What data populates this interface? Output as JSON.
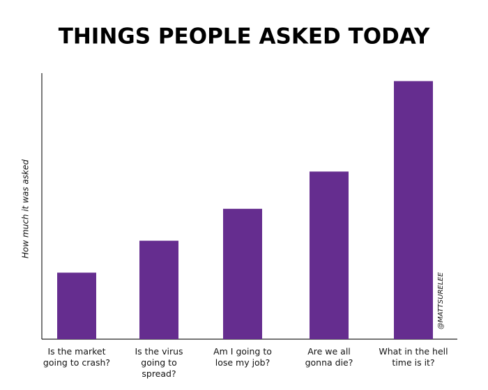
{
  "chart_data": {
    "type": "bar",
    "title": "THINGS PEOPLE ASKED TODAY",
    "y_label": "How much it was asked",
    "annotation": "@MATTSURELEE",
    "categories": [
      "Is the market going to crash?",
      "Is the virus going to spread?",
      "Am I going to lose my job?",
      "Are we all gonna die?",
      "What in the hell time is it?"
    ],
    "values": [
      25,
      37,
      49,
      63,
      97
    ],
    "color": "#652d8f",
    "ylim": [
      0,
      100
    ]
  }
}
